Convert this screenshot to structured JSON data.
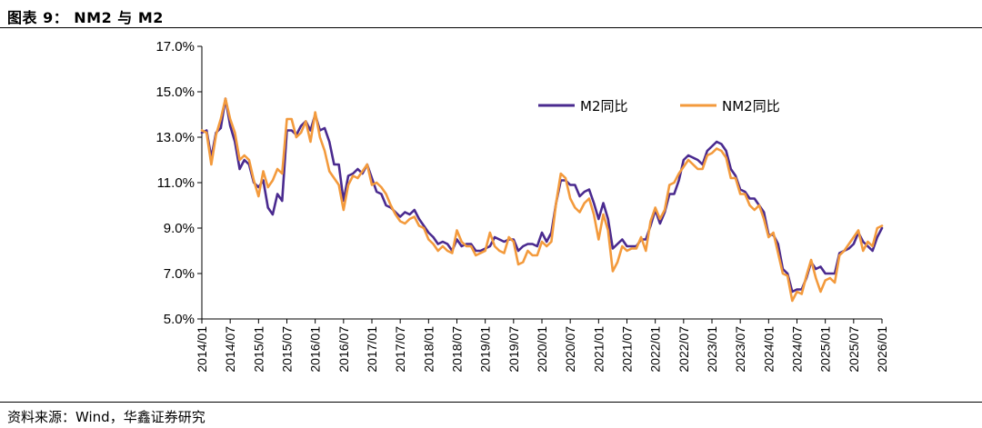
{
  "title": "图表 9： NM2 与 M2",
  "source": "资料来源：Wind，华鑫证券研究",
  "colors": {
    "m2": "#4a2a8f",
    "nm2": "#f39a3c"
  },
  "chart_data": {
    "type": "line",
    "ylim": [
      5.0,
      17.0
    ],
    "yticks": [
      "5.0%",
      "7.0%",
      "9.0%",
      "11.0%",
      "13.0%",
      "15.0%",
      "17.0%"
    ],
    "ytick_values": [
      5,
      7,
      9,
      11,
      13,
      15,
      17
    ],
    "xlabels": [
      "2014/01",
      "2014/07",
      "2015/01",
      "2015/07",
      "2016/01",
      "2016/07",
      "2017/01",
      "2017/07",
      "2018/01",
      "2018/07",
      "2019/01",
      "2019/07",
      "2020/01",
      "2020/07",
      "2021/01",
      "2021/07",
      "2022/01",
      "2022/07",
      "2023/01",
      "2023/07",
      "2024/01",
      "2024/07",
      "2025/01",
      "2025/07",
      "2026/01"
    ],
    "x_start": "2014/01",
    "x_end": "2026/01",
    "legend_position": "top-right",
    "grid": false,
    "series": [
      {
        "name": "M2同比",
        "values": [
          13.2,
          13.3,
          12.1,
          13.2,
          13.4,
          14.7,
          13.5,
          12.8,
          11.6,
          12.0,
          11.8,
          11.0,
          10.8,
          11.1,
          9.9,
          9.6,
          10.5,
          10.2,
          13.3,
          13.3,
          13.1,
          13.5,
          13.7,
          13.3,
          14.0,
          13.3,
          13.4,
          12.8,
          11.8,
          11.8,
          10.2,
          11.3,
          11.4,
          11.6,
          11.4,
          11.8,
          11.2,
          10.6,
          10.5,
          10.0,
          9.9,
          9.7,
          9.5,
          9.7,
          9.6,
          9.8,
          9.4,
          9.1,
          8.8,
          8.6,
          8.3,
          8.4,
          8.3,
          8.0,
          8.5,
          8.2,
          8.3,
          8.3,
          8.0,
          8.0,
          8.1,
          8.2,
          8.6,
          8.5,
          8.4,
          8.5,
          8.5,
          8.0,
          8.2,
          8.3,
          8.3,
          8.2,
          8.8,
          8.4,
          8.8,
          10.1,
          11.1,
          11.1,
          10.9,
          10.9,
          10.4,
          10.6,
          10.7,
          10.1,
          9.4,
          10.1,
          9.4,
          8.1,
          8.3,
          8.5,
          8.2,
          8.2,
          8.2,
          8.5,
          8.5,
          9.1,
          9.8,
          9.2,
          9.7,
          10.5,
          10.5,
          11.1,
          12.0,
          12.2,
          12.1,
          12.0,
          11.8,
          12.4,
          12.6,
          12.8,
          12.7,
          12.4,
          11.6,
          11.3,
          10.7,
          10.6,
          10.3,
          10.3,
          10.0,
          9.7,
          8.7,
          8.7,
          8.3,
          7.2,
          7.0,
          6.2,
          6.3,
          6.3,
          6.8,
          7.5,
          7.2,
          7.3,
          7.0,
          7.0,
          7.0,
          7.9,
          8.0,
          8.1,
          8.3,
          8.8,
          8.4,
          8.2,
          8.0,
          8.6,
          9.0
        ]
      },
      {
        "name": "NM2同比",
        "values": [
          13.3,
          13.2,
          11.8,
          13.1,
          13.8,
          14.7,
          13.8,
          13.2,
          12.0,
          12.2,
          12.0,
          11.1,
          10.4,
          11.5,
          10.8,
          11.1,
          11.6,
          11.4,
          13.8,
          13.8,
          13.0,
          13.2,
          13.7,
          12.8,
          14.1,
          13.0,
          12.4,
          11.5,
          11.2,
          10.9,
          9.8,
          10.9,
          11.3,
          11.2,
          11.5,
          11.8,
          10.9,
          11.0,
          10.8,
          10.5,
          10.0,
          9.6,
          9.3,
          9.2,
          9.4,
          9.5,
          9.1,
          9.0,
          8.5,
          8.3,
          8.0,
          8.2,
          8.0,
          7.9,
          8.9,
          8.4,
          8.2,
          8.2,
          7.8,
          7.9,
          8.0,
          8.8,
          8.2,
          8.0,
          7.9,
          8.6,
          8.4,
          7.4,
          7.5,
          8.0,
          7.8,
          7.8,
          8.4,
          8.2,
          8.4,
          10.1,
          11.4,
          11.2,
          10.3,
          9.9,
          9.7,
          10.1,
          10.3,
          9.6,
          8.5,
          9.6,
          8.9,
          7.1,
          7.5,
          8.2,
          8.0,
          8.1,
          8.1,
          8.6,
          8.0,
          9.3,
          9.9,
          9.4,
          9.8,
          10.9,
          11.0,
          11.4,
          11.7,
          12.0,
          11.8,
          11.6,
          11.6,
          12.2,
          12.3,
          12.5,
          12.4,
          12.1,
          11.2,
          11.2,
          10.5,
          10.5,
          10.0,
          9.8,
          10.0,
          9.4,
          8.6,
          8.8,
          7.9,
          7.0,
          6.9,
          5.8,
          6.2,
          6.1,
          6.9,
          7.6,
          6.8,
          6.2,
          6.7,
          6.8,
          6.6,
          7.8,
          8.0,
          8.3,
          8.6,
          8.9,
          8.0,
          8.4,
          8.2,
          9.0,
          9.1
        ]
      }
    ]
  }
}
